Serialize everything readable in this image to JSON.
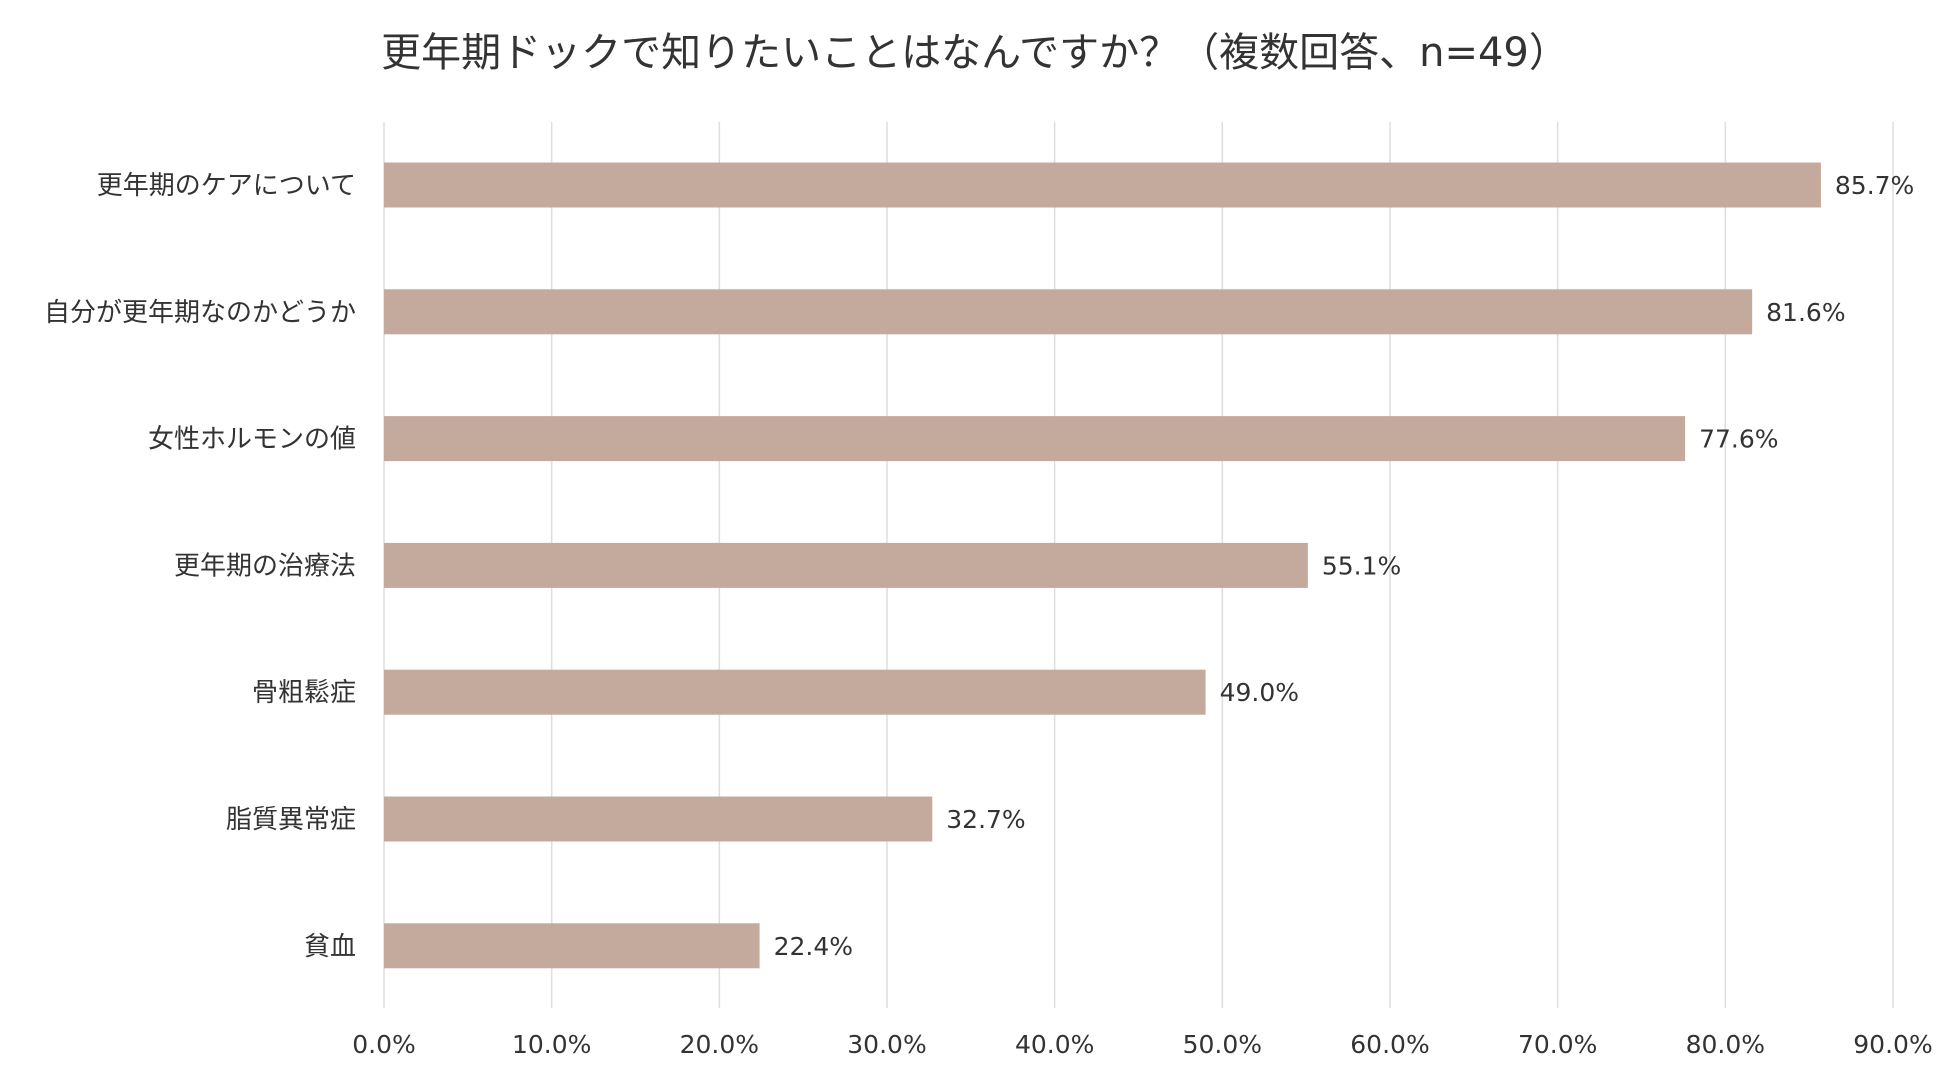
{
  "chart_data": {
    "type": "bar",
    "orientation": "horizontal",
    "title": "更年期ドックで知りたいことはなんですか？（複数回答、n=49）",
    "categories": [
      "更年期のケアについて",
      "自分が更年期なのかどうか",
      "女性ホルモンの値",
      "更年期の治療法",
      "骨粗鬆症",
      "脂質異常症",
      "貧血"
    ],
    "values": [
      85.7,
      81.6,
      77.6,
      55.1,
      49.0,
      32.7,
      22.4
    ],
    "data_labels": [
      "85.7%",
      "81.6%",
      "77.6%",
      "55.1%",
      "49.0%",
      "32.7%",
      "22.4%"
    ],
    "x_ticks": [
      "0.0%",
      "10.0%",
      "20.0%",
      "30.0%",
      "40.0%",
      "50.0%",
      "60.0%",
      "70.0%",
      "80.0%",
      "90.0%"
    ],
    "xlim": [
      0,
      90
    ],
    "grid": true,
    "legend": "none",
    "xlabel": "",
    "ylabel": "",
    "bar_color": "#c4a99d",
    "grid_color": "#dedede",
    "text_color": "#333333"
  }
}
